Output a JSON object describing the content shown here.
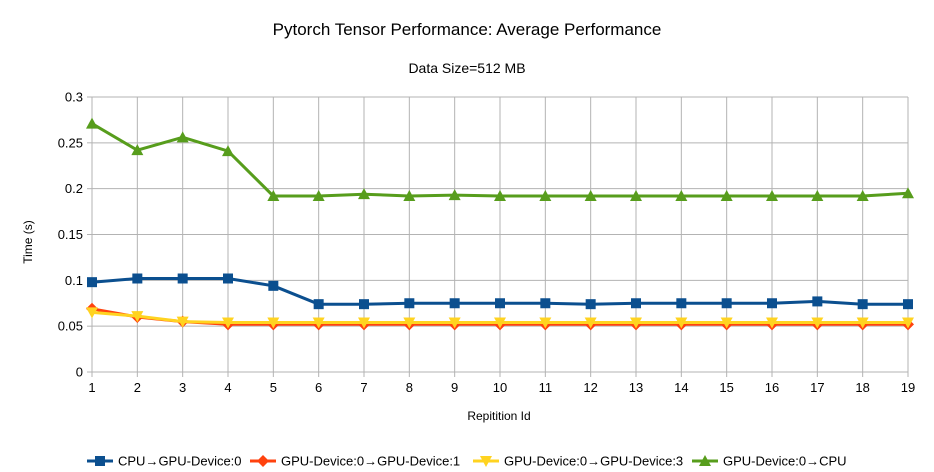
{
  "chart_data": {
    "type": "line",
    "title": "Pytorch Tensor Performance: Average Performance",
    "subtitle": "Data Size=512 MB",
    "xlabel": "Repitition Id",
    "ylabel": "Time (s)",
    "ylim": [
      0,
      0.3
    ],
    "yticks": [
      "0",
      "0.05",
      "0.1",
      "0.15",
      "0.2",
      "0.25",
      "0.3"
    ],
    "x": [
      1,
      2,
      3,
      4,
      5,
      6,
      7,
      8,
      9,
      10,
      11,
      12,
      13,
      14,
      15,
      16,
      17,
      18,
      19
    ],
    "grid": true,
    "legend_position": "bottom",
    "series": [
      {
        "name": "CPU→GPU-Device:0",
        "color": "#0b4f8f",
        "marker": "square",
        "values": [
          0.098,
          0.102,
          0.102,
          0.102,
          0.094,
          0.074,
          0.074,
          0.075,
          0.075,
          0.075,
          0.075,
          0.074,
          0.075,
          0.075,
          0.075,
          0.075,
          0.077,
          0.074,
          0.074
        ]
      },
      {
        "name": "GPU-Device:0→GPU-Device:1",
        "color": "#ff420e",
        "marker": "diamond",
        "values": [
          0.069,
          0.06,
          0.055,
          0.052,
          0.052,
          0.052,
          0.052,
          0.052,
          0.052,
          0.052,
          0.052,
          0.052,
          0.052,
          0.052,
          0.052,
          0.052,
          0.052,
          0.052,
          0.052
        ]
      },
      {
        "name": "GPU-Device:0→GPU-Device:3",
        "color": "#ffd320",
        "marker": "triangle-down",
        "values": [
          0.065,
          0.061,
          0.055,
          0.054,
          0.054,
          0.054,
          0.054,
          0.054,
          0.054,
          0.054,
          0.054,
          0.054,
          0.054,
          0.054,
          0.054,
          0.054,
          0.054,
          0.054,
          0.054
        ]
      },
      {
        "name": "GPU-Device:0→CPU",
        "color": "#579d1c",
        "marker": "triangle-up",
        "values": [
          0.271,
          0.242,
          0.256,
          0.241,
          0.192,
          0.192,
          0.194,
          0.192,
          0.193,
          0.192,
          0.192,
          0.192,
          0.192,
          0.192,
          0.192,
          0.192,
          0.192,
          0.192,
          0.195
        ]
      }
    ]
  }
}
